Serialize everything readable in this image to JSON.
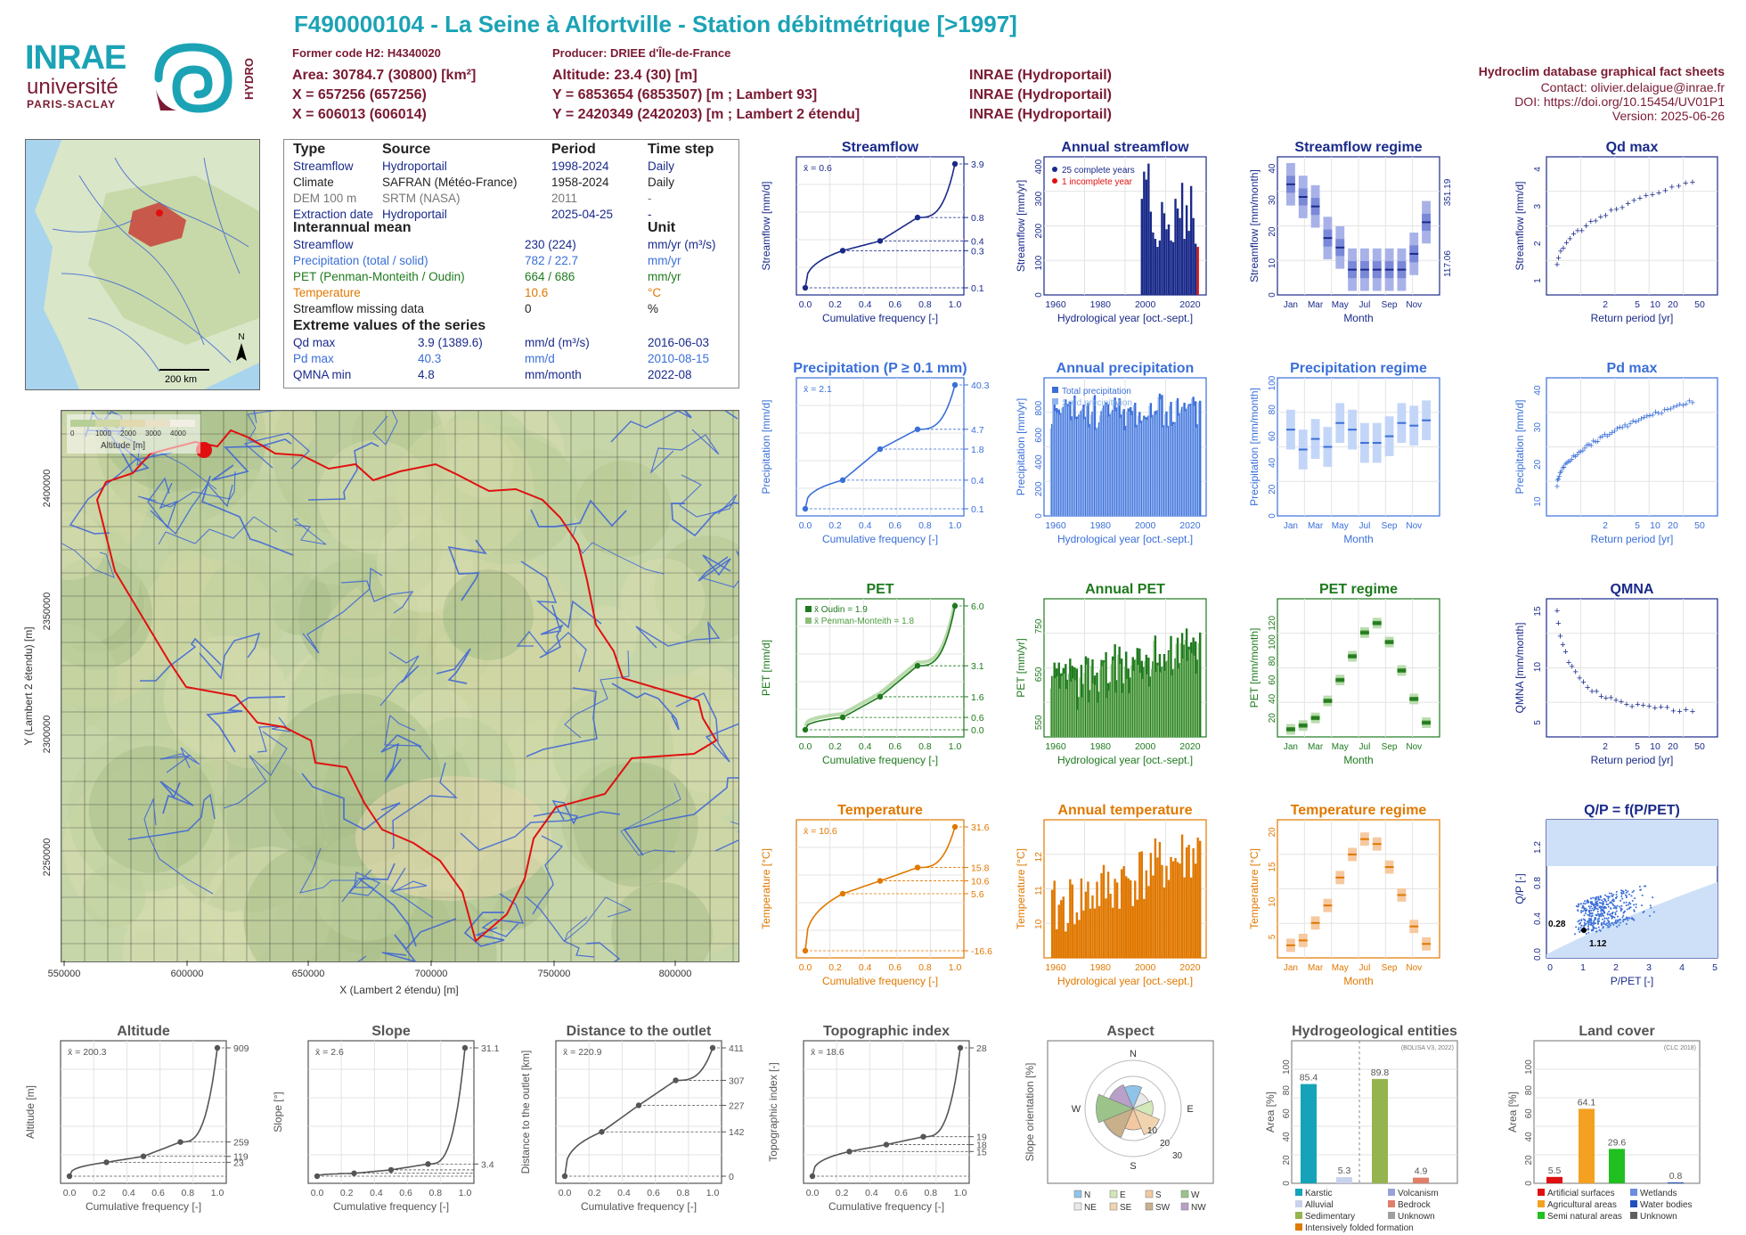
{
  "header": {
    "title": "F490000104 - La Seine à Alfortville - Station débitmétrique [>1997]",
    "former_code": "Former code H2: H4340020",
    "producer": "Producer: DRIEE d'Île-de-France",
    "area": "Area: 30784.7 (30800) [km²]",
    "altitude": "Altitude: 23.4 (30) [m]",
    "x93": "X = 657256 (657256)",
    "y93": "Y = 6853654 (6853507) [m ; Lambert 93]",
    "x2e": "X = 606013 (606014)",
    "y2e": "Y = 2420349 (2420203) [m ; Lambert 2 étendu]",
    "src1": "INRAE (Hydroportail)",
    "src2": "INRAE (Hydroportail)",
    "src3": "INRAE (Hydroportail)",
    "db_title": "Hydroclim database graphical fact sheets",
    "contact": "Contact: olivier.delaigue@inrae.fr",
    "doi": "DOI: https://doi.org/10.15454/UV01P1",
    "version": "Version: 2025-06-26"
  },
  "logos": {
    "inrae": "INRAE",
    "universite": "université",
    "paris_saclay": "PARIS-SACLAY",
    "hydro": "HYDRO"
  },
  "colors": {
    "flow": "#1a2a8a",
    "prec": "#3a6fd8",
    "pet": "#1e7a1e",
    "temp": "#e07800",
    "grey": "#555555",
    "teal": "#1ba3b5",
    "maroon": "#7a1a33"
  },
  "info": {
    "col_type": "Type",
    "col_source": "Source",
    "col_period": "Period",
    "col_step": "Time step",
    "rows": [
      {
        "type": "Streamflow",
        "source": "Hydroportail",
        "period": "1998-2024",
        "step": "Daily",
        "cls": "c-flow"
      },
      {
        "type": "Climate",
        "source": "SAFRAN (Météo-France)",
        "period": "1958-2024",
        "step": "Daily",
        "cls": "c-black"
      },
      {
        "type": "DEM 100 m",
        "source": "SRTM (NASA)",
        "period": "2011",
        "step": "-",
        "cls": "c-grey"
      },
      {
        "type": "Extraction date",
        "source": "Hydroportail",
        "period": "2025-04-25",
        "step": "-",
        "cls": "c-flow"
      }
    ],
    "interannual": "Interannual mean",
    "unit": "Unit",
    "means": [
      {
        "name": "Streamflow",
        "value": "230 (224)",
        "unit": "mm/yr (m³/s)",
        "cls": "c-flow"
      },
      {
        "name": "Precipitation (total / solid)",
        "value": "782 / 22.7",
        "unit": "mm/yr",
        "cls": "c-prec"
      },
      {
        "name": "PET (Penman-Monteith / Oudin)",
        "value": "664 / 686",
        "unit": "mm/yr",
        "cls": "c-pet"
      },
      {
        "name": "Temperature",
        "value": "10.6",
        "unit": "°C",
        "cls": "c-temp"
      },
      {
        "name": "Streamflow missing data",
        "value": "0",
        "unit": "%",
        "cls": "c-black"
      }
    ],
    "extreme": "Extreme values of the series",
    "extremes": [
      {
        "name": "Qd max",
        "value": "3.9 (1389.6)",
        "unit": "mm/d (m³/s)",
        "date": "2016-06-03",
        "cls": "c-flow"
      },
      {
        "name": "Pd max",
        "value": "40.3",
        "unit": "mm/d",
        "date": "2010-08-15",
        "cls": "c-prec"
      },
      {
        "name": "QMNA min",
        "value": "4.8",
        "unit": "mm/month",
        "date": "2022-08",
        "cls": "c-flow"
      }
    ]
  },
  "minimap": {
    "scale": "200 km",
    "north": "N"
  },
  "bigmap": {
    "xlabel": "X (Lambert 2 étendu) [m]",
    "ylabel": "Y (Lambert 2 étendu) [m]",
    "xticks": [
      "550000",
      "600000",
      "650000",
      "700000",
      "750000",
      "800000"
    ],
    "yticks": [
      "2400000",
      "2350000",
      "2300000",
      "2250000"
    ],
    "legend_ticks": [
      "0",
      "1000",
      "2000",
      "3000",
      "4000"
    ],
    "legend_label": "Altitude [m]"
  },
  "chart_data": [
    {
      "id": "streamflow",
      "type": "line",
      "title": "Streamflow",
      "xlabel": "Cumulative frequency [-]",
      "ylabel": "Streamflow [mm/d]",
      "mean": "x̄ = 0.6",
      "right_labels": [
        "3.9",
        "0.8",
        "0.4",
        "0.3",
        "0.1"
      ],
      "x": [
        0,
        0.25,
        0.5,
        0.75,
        1
      ],
      "y": [
        0.1,
        0.3,
        0.4,
        0.8,
        3.9
      ],
      "ylog": true
    },
    {
      "id": "annual_streamflow",
      "type": "bar",
      "title": "Annual streamflow",
      "xlabel": "Hydrological year [oct.-sept.]",
      "ylabel": "Streamflow [mm/yr]",
      "legend": [
        "25 complete years",
        "1 incomplete year"
      ],
      "x": [
        1998,
        1999,
        2000,
        2001,
        2002,
        2003,
        2004,
        2005,
        2006,
        2007,
        2008,
        2009,
        2010,
        2011,
        2012,
        2013,
        2014,
        2015,
        2016,
        2017,
        2018,
        2019,
        2020,
        2021,
        2022,
        2023
      ],
      "values": [
        300,
        385,
        360,
        410,
        260,
        195,
        175,
        150,
        170,
        290,
        255,
        205,
        220,
        170,
        165,
        300,
        270,
        240,
        350,
        175,
        280,
        200,
        340,
        240,
        160,
        150
      ],
      "ylim": [
        0,
        420
      ]
    },
    {
      "id": "streamflow_regime",
      "type": "box",
      "title": "Streamflow regime",
      "xlabel": "Month",
      "ylabel": "Streamflow [mm/month]",
      "right_labels": [
        "351.19",
        "117.06"
      ],
      "months": [
        "Jan",
        "Mar",
        "May",
        "Jul",
        "Sep",
        "Nov"
      ],
      "median": [
        35,
        31,
        28,
        18,
        15,
        8,
        8,
        8,
        8,
        8,
        13,
        23
      ],
      "ylim": [
        0,
        42
      ]
    },
    {
      "id": "qd_max",
      "type": "scatter",
      "title": "Qd max",
      "xlabel": "Return period [yr]",
      "ylabel": "Streamflow [mm/d]",
      "xticks": [
        "2",
        "5",
        "10",
        "20",
        "50"
      ]
    },
    {
      "id": "precipitation",
      "type": "line",
      "title": "Precipitation (P ≥ 0.1 mm)",
      "xlabel": "Cumulative frequency [-]",
      "ylabel": "Precipitation [mm/d]",
      "mean": "x̄ = 2.1",
      "right_labels": [
        "40.3",
        "4.7",
        "1.8",
        "0.4",
        "0.1"
      ],
      "x": [
        0,
        0.25,
        0.5,
        0.75,
        1
      ],
      "y": [
        0.1,
        0.4,
        1.8,
        4.7,
        40.3
      ],
      "ylog": true
    },
    {
      "id": "annual_precipitation",
      "type": "bar",
      "title": "Annual precipitation",
      "xlabel": "Hydrological year [oct.-sept.]",
      "ylabel": "Precipitation [mm/yr]",
      "legend": [
        "Total precipitation",
        "Solid precipitation"
      ],
      "ylim": [
        0,
        1000
      ]
    },
    {
      "id": "precipitation_regime",
      "type": "box",
      "title": "Precipitation regime",
      "xlabel": "Month",
      "ylabel": "Precipitation [mm/month]",
      "months": [
        "Jan",
        "Mar",
        "May",
        "Jul",
        "Sep",
        "Nov"
      ],
      "median": [
        65,
        50,
        58,
        52,
        70,
        65,
        55,
        55,
        60,
        70,
        68,
        72
      ],
      "ylim": [
        0,
        100
      ]
    },
    {
      "id": "pd_max",
      "type": "scatter",
      "title": "Pd max",
      "xlabel": "Return period [yr]",
      "ylabel": "Precipitation [mm/d]",
      "xticks": [
        "2",
        "5",
        "10",
        "20",
        "50"
      ]
    },
    {
      "id": "pet",
      "type": "line",
      "title": "PET",
      "xlabel": "Cumulative frequency [-]",
      "ylabel": "PET [mm/d]",
      "legend": [
        "x̄ Oudin = 1.9",
        "x̄ Penman-Monteith = 1.8"
      ],
      "right_labels": [
        "6.0",
        "3.1",
        "1.6",
        "0.6",
        "0.0"
      ],
      "x": [
        0,
        0.25,
        0.5,
        0.75,
        1
      ],
      "y": [
        0,
        0.6,
        1.6,
        3.1,
        6.0
      ]
    },
    {
      "id": "annual_pet",
      "type": "bar",
      "title": "Annual PET",
      "xlabel": "Hydrological year [oct.-sept.]",
      "ylabel": "PET [mm/yr]",
      "ylim": [
        520,
        800
      ]
    },
    {
      "id": "pet_regime",
      "type": "box",
      "title": "PET regime",
      "xlabel": "Month",
      "ylabel": "PET [mm/month]",
      "months": [
        "Jan",
        "Mar",
        "May",
        "Jul",
        "Sep",
        "Nov"
      ],
      "median": [
        8,
        12,
        20,
        38,
        60,
        85,
        110,
        120,
        100,
        70,
        40,
        15
      ],
      "ylim": [
        0,
        140
      ]
    },
    {
      "id": "qmna",
      "type": "scatter",
      "title": "QMNA",
      "xlabel": "Return period [yr]",
      "ylabel": "QMNA [mm/month]",
      "xticks": [
        "2",
        "5",
        "10",
        "20",
        "50"
      ]
    },
    {
      "id": "temperature",
      "type": "line",
      "title": "Temperature",
      "xlabel": "Cumulative frequency [-]",
      "ylabel": "Temperature [°C]",
      "mean": "x̄ = 10.6",
      "right_labels": [
        "31.6",
        "15.8",
        "10.6",
        "5.6",
        "-16.6"
      ],
      "x": [
        0,
        0.25,
        0.5,
        0.75,
        1
      ],
      "y": [
        -16.6,
        5.6,
        10.6,
        15.8,
        31.6
      ]
    },
    {
      "id": "annual_temperature",
      "type": "bar",
      "title": "Annual temperature",
      "xlabel": "Hydrological year [oct.-sept.]",
      "ylabel": "Temperature [°C]",
      "ylim": [
        9,
        13
      ]
    },
    {
      "id": "temperature_regime",
      "type": "box",
      "title": "Temperature regime",
      "xlabel": "Month",
      "ylabel": "Temperature [°C]",
      "months": [
        "Jan",
        "Mar",
        "May",
        "Jul",
        "Sep",
        "Nov"
      ],
      "median": [
        3.8,
        4.5,
        7,
        9.5,
        13.5,
        16.8,
        19,
        18.3,
        15,
        11,
        6.5,
        4
      ],
      "ylim": [
        2,
        21
      ]
    },
    {
      "id": "qp_ppet",
      "type": "scatter",
      "title": "Q/P = f(P/PET)",
      "xlabel": "P/PET [-]",
      "ylabel": "Q/P [-]",
      "annotations": [
        "0.28",
        "1.12"
      ]
    },
    {
      "id": "altitude",
      "type": "line",
      "title": "Altitude",
      "xlabel": "Cumulative frequency [-]",
      "ylabel": "Altitude [m]",
      "mean": "x̄ = 200.3",
      "right_labels": [
        "909",
        "259",
        "119",
        "23"
      ],
      "x": [
        0,
        0.25,
        0.5,
        0.75,
        1
      ],
      "y": [
        23,
        119,
        160,
        259,
        909
      ]
    },
    {
      "id": "slope",
      "type": "line",
      "title": "Slope",
      "xlabel": "Cumulative frequency [-]",
      "ylabel": "Slope [°]",
      "mean": "x̄ = 2.6",
      "right_labels": [
        "31.1",
        "3.4"
      ],
      "x": [
        0,
        0.25,
        0.5,
        0.75,
        1
      ],
      "y": [
        0.5,
        1.2,
        2,
        3.4,
        31.1
      ]
    },
    {
      "id": "distance",
      "type": "line",
      "title": "Distance to the outlet",
      "xlabel": "Cumulative frequency [-]",
      "ylabel": "Distance to the outlet [km]",
      "mean": "x̄ = 220.9",
      "right_labels": [
        "411",
        "307",
        "227",
        "142",
        "0"
      ],
      "x": [
        0,
        0.25,
        0.5,
        0.75,
        1
      ],
      "y": [
        0,
        142,
        227,
        307,
        411
      ]
    },
    {
      "id": "topo_index",
      "type": "line",
      "title": "Topographic index",
      "xlabel": "Cumulative frequency [-]",
      "ylabel": "Topographic index [-]",
      "mean": "x̄ = 18.6",
      "right_labels": [
        "28",
        "19",
        "18",
        "15"
      ],
      "x": [
        0,
        0.25,
        0.5,
        0.75,
        1
      ],
      "y": [
        15,
        17.5,
        18.2,
        19,
        28
      ]
    },
    {
      "id": "aspect",
      "type": "pie",
      "title": "Aspect",
      "ylabel": "Slope orientation [%]",
      "dirs": [
        "N",
        "NE",
        "E",
        "SE",
        "S",
        "SW",
        "W",
        "NW"
      ],
      "legend": [
        "N",
        "E",
        "S",
        "W",
        "NE",
        "SE",
        "SW",
        "NW"
      ],
      "ring_labels": [
        "10",
        "20",
        "30"
      ]
    },
    {
      "id": "hydrogeology",
      "type": "bar",
      "title": "Hydrogeological entities",
      "ylabel": "Area [%]",
      "note": "(BDLISA V3, 2022)",
      "categories": [
        "Karstic",
        "Alluvial",
        "Sedimentary",
        "Volcanism",
        "Bedrock",
        "Unknown",
        "Intensively folded formation"
      ],
      "values": [
        85.4,
        5.3,
        89.8,
        0,
        4.9,
        0,
        0
      ],
      "labels": [
        "85.4",
        "5.3",
        "89.8",
        "4.9"
      ],
      "legend": [
        "Karstic",
        "Volcanism",
        "Alluvial",
        "Bedrock",
        "Sedimentary",
        "Unknown",
        "Intensively folded formation"
      ]
    },
    {
      "id": "land_cover",
      "type": "bar",
      "title": "Land cover",
      "ylabel": "Area [%]",
      "note": "(CLC 2018)",
      "categories": [
        "Artificial surfaces",
        "Agricultural areas",
        "Semi natural areas",
        "Wetlands",
        "Water bodies",
        "Unknown"
      ],
      "values": [
        5.5,
        64.1,
        29.6,
        0,
        0.8,
        0
      ],
      "labels": [
        "5.5",
        "64.1",
        "29.6",
        "0.8"
      ],
      "legend": [
        "Artificial surfaces",
        "Wetlands",
        "Agricultural areas",
        "Water bodies",
        "Semi natural areas",
        "Unknown"
      ]
    }
  ]
}
